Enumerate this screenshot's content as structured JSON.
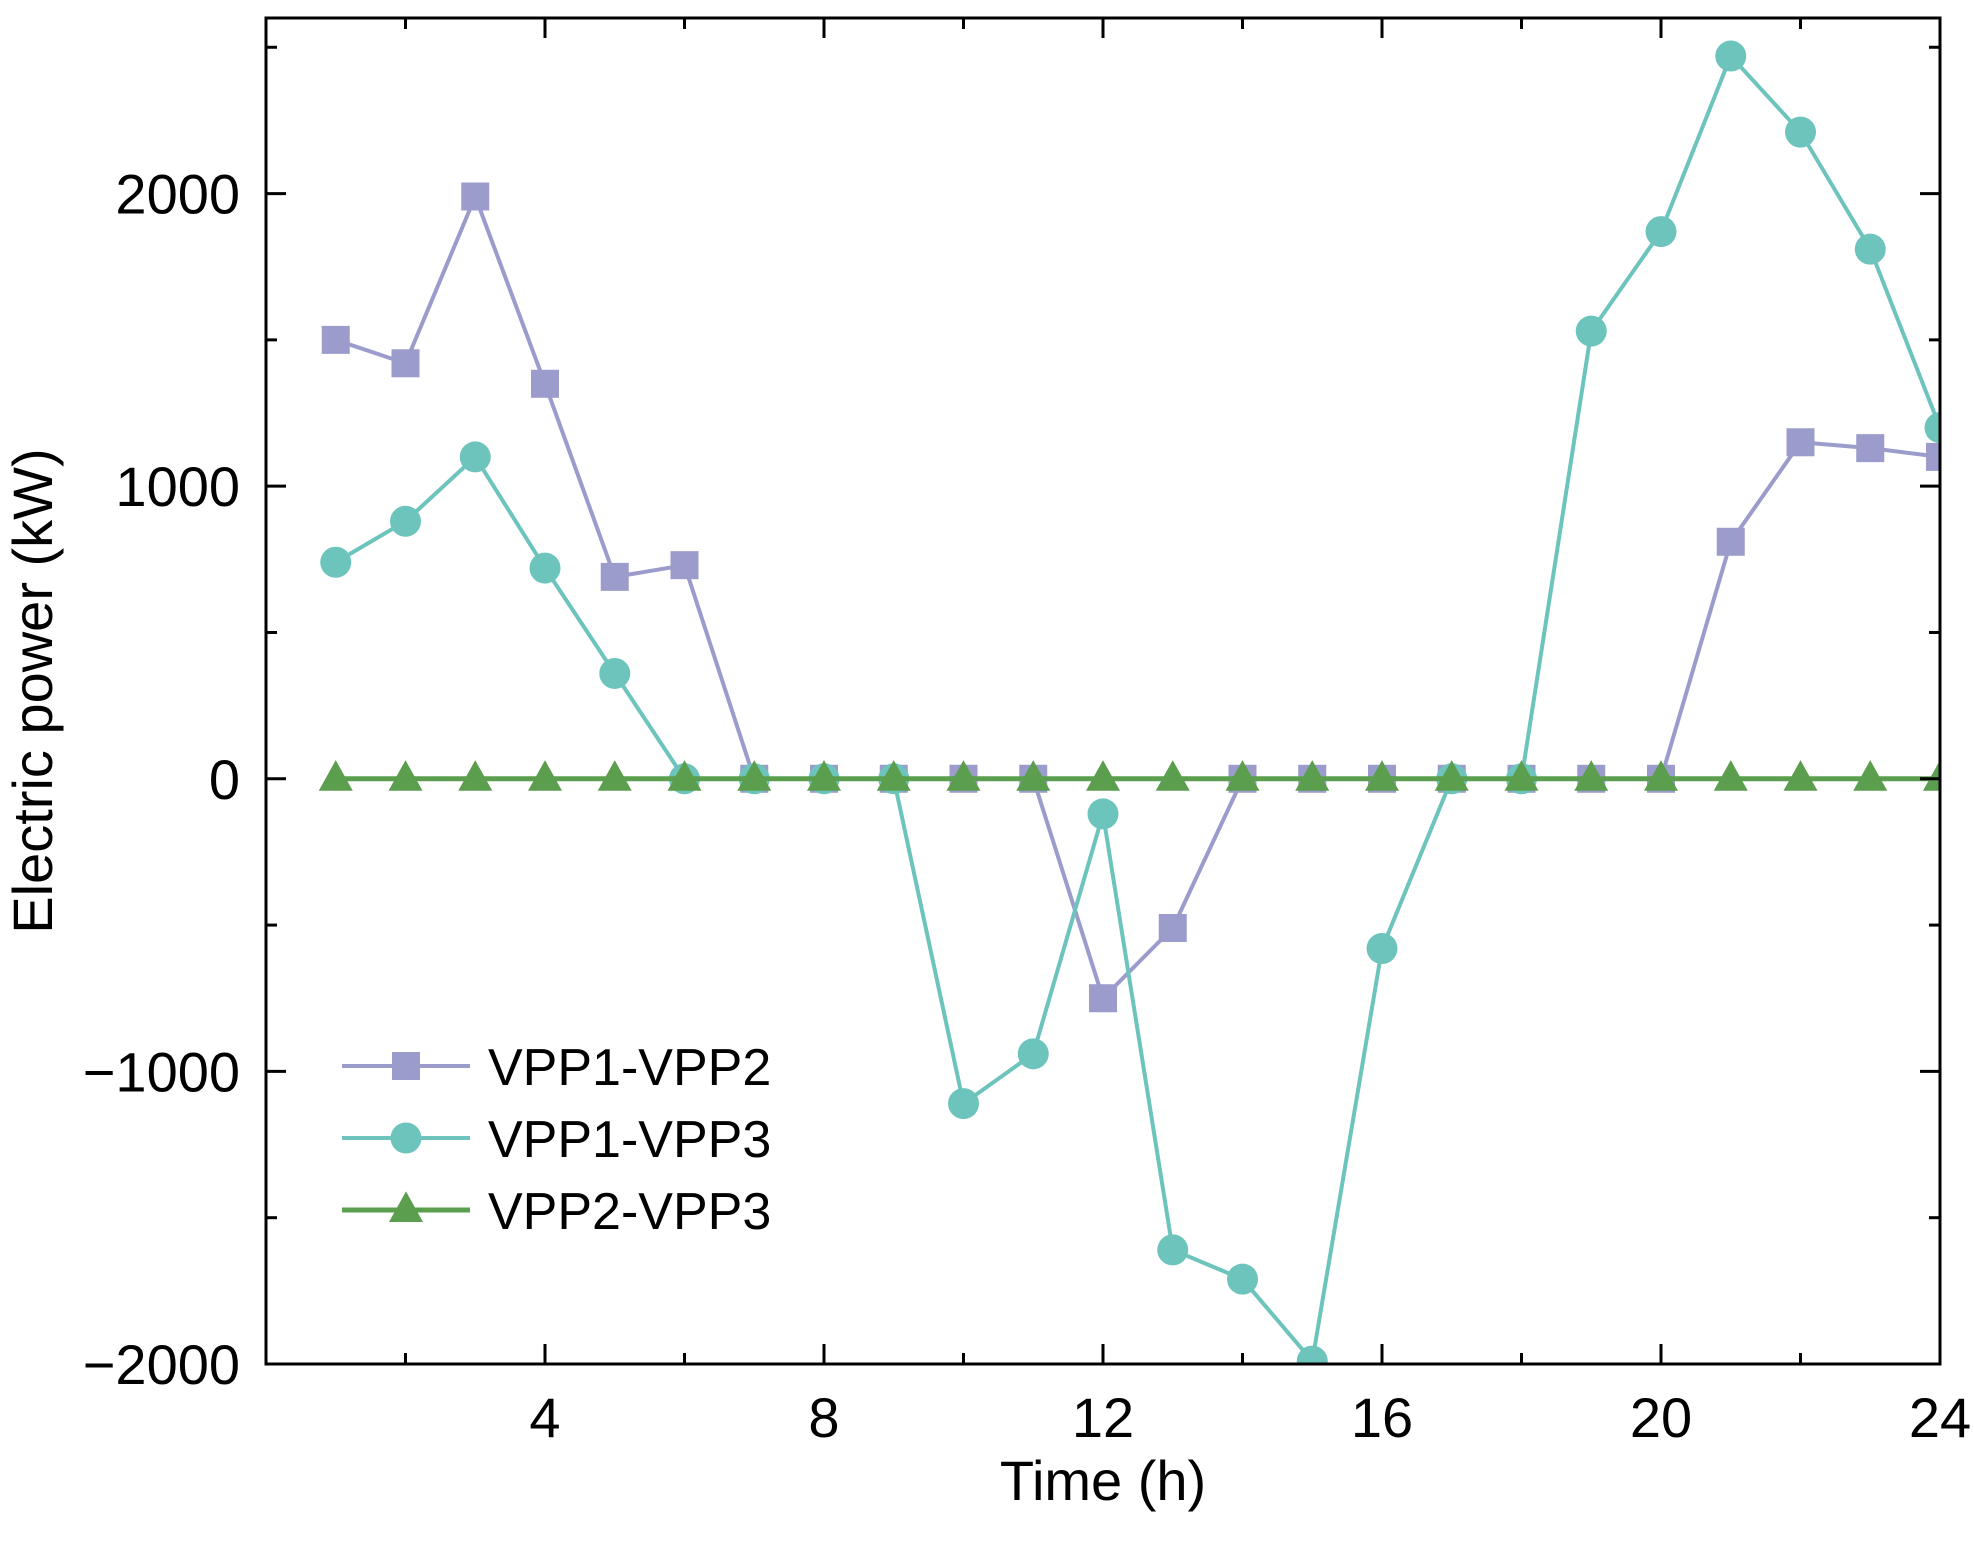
{
  "chart_data": {
    "type": "line",
    "title": "",
    "xlabel": "Time (h)",
    "ylabel": "Electric power (kW)",
    "xlim": [
      0,
      24
    ],
    "ylim": [
      -2000,
      2600
    ],
    "x_ticks": [
      4,
      8,
      12,
      16,
      20,
      24
    ],
    "x_tick_labels": [
      "4",
      "8",
      "12",
      "16",
      "20",
      "24"
    ],
    "x_minor_ticks": [
      2,
      6,
      10,
      14,
      18,
      22
    ],
    "y_ticks": [
      -2000,
      -1000,
      0,
      1000,
      2000
    ],
    "y_tick_labels": [
      "−2000",
      "−1000",
      "0",
      "1000",
      "2000"
    ],
    "y_minor_ticks": [
      -1500,
      -500,
      500,
      1500,
      2500
    ],
    "grid": false,
    "legend_position": "lower-left",
    "x": [
      1,
      2,
      3,
      4,
      5,
      6,
      7,
      8,
      9,
      10,
      11,
      12,
      13,
      14,
      15,
      16,
      17,
      18,
      19,
      20,
      21,
      22,
      23,
      24
    ],
    "series": [
      {
        "name": "VPP1-VPP2",
        "marker": "square",
        "color": "#9b9bcc",
        "values": [
          1500,
          1420,
          1990,
          1350,
          690,
          730,
          0,
          0,
          0,
          0,
          0,
          -750,
          -510,
          0,
          0,
          0,
          0,
          0,
          0,
          0,
          810,
          1150,
          1130,
          1100
        ]
      },
      {
        "name": "VPP1-VPP3",
        "marker": "circle",
        "color": "#6cc4bc",
        "values": [
          740,
          880,
          1100,
          720,
          360,
          0,
          0,
          0,
          0,
          -1110,
          -940,
          -120,
          -1610,
          -1710,
          -1990,
          -580,
          0,
          0,
          1530,
          1870,
          2470,
          2210,
          1810,
          1200
        ]
      },
      {
        "name": "VPP2-VPP3",
        "marker": "triangle",
        "color": "#5a9e4e",
        "values": [
          0,
          0,
          0,
          0,
          0,
          0,
          0,
          0,
          0,
          0,
          0,
          0,
          0,
          0,
          0,
          0,
          0,
          0,
          0,
          0,
          0,
          0,
          0,
          0
        ]
      }
    ]
  }
}
